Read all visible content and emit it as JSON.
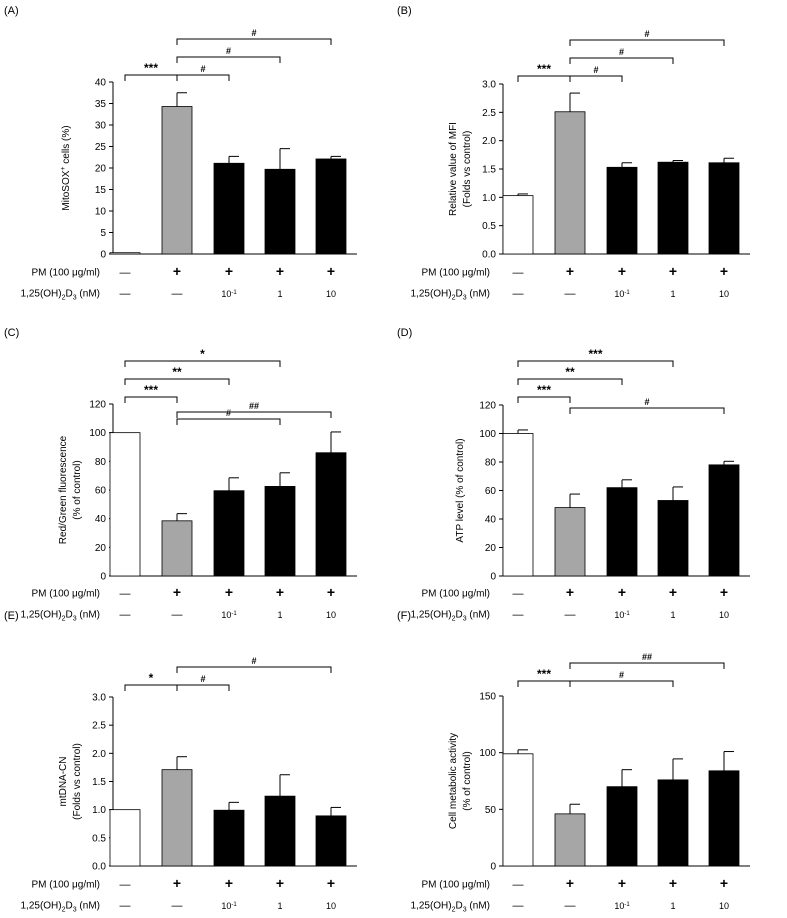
{
  "chart_data": [
    {
      "panel_label": "(A)",
      "type": "bar",
      "ylabel_parts": {
        "pre": "MitoSOX",
        "sup": "+",
        "post": " cells (%)"
      },
      "ylim": [
        0,
        40
      ],
      "yticks": [
        0,
        5,
        10,
        15,
        20,
        25,
        30,
        35,
        40
      ],
      "tick_decimals": 0,
      "bars": [
        {
          "value": 0.3,
          "error": 0,
          "fill": "#ffffff"
        },
        {
          "value": 34.3,
          "error": 3.2,
          "fill": "#a6a6a6"
        },
        {
          "value": 21.1,
          "error": 1.6,
          "fill": "#000000"
        },
        {
          "value": 19.7,
          "error": 4.8,
          "fill": "#000000"
        },
        {
          "value": 22.1,
          "error": 0.6,
          "fill": "#000000"
        }
      ],
      "brackets": [
        {
          "from": 0,
          "to": 1,
          "label": "***"
        },
        {
          "from": 1,
          "to": 2,
          "label": "#"
        },
        {
          "from": 1,
          "to": 3,
          "label": "#"
        },
        {
          "from": 1,
          "to": 4,
          "label": "#"
        }
      ]
    },
    {
      "panel_label": "(B)",
      "type": "bar",
      "ylabel_lines": [
        "Relative value of MFI",
        "(Folds vs control)"
      ],
      "ylim": [
        0,
        3
      ],
      "yticks": [
        0,
        0.5,
        1,
        1.5,
        2,
        2.5,
        3
      ],
      "tick_decimals": 1,
      "bars": [
        {
          "value": 1.03,
          "error": 0.03,
          "fill": "#ffffff"
        },
        {
          "value": 2.51,
          "error": 0.33,
          "fill": "#a6a6a6"
        },
        {
          "value": 1.53,
          "error": 0.08,
          "fill": "#000000"
        },
        {
          "value": 1.62,
          "error": 0.03,
          "fill": "#000000"
        },
        {
          "value": 1.61,
          "error": 0.08,
          "fill": "#000000"
        }
      ],
      "brackets": [
        {
          "from": 0,
          "to": 1,
          "label": "***"
        },
        {
          "from": 1,
          "to": 2,
          "label": "#"
        },
        {
          "from": 1,
          "to": 3,
          "label": "#"
        },
        {
          "from": 1,
          "to": 4,
          "label": "#"
        }
      ]
    },
    {
      "panel_label": "(C)",
      "type": "bar",
      "ylabel_lines": [
        "Red/Green fluorescence",
        "(% of control)"
      ],
      "ylim": [
        0,
        120
      ],
      "yticks": [
        0,
        20,
        40,
        60,
        80,
        100,
        120
      ],
      "tick_decimals": 0,
      "bars": [
        {
          "value": 100,
          "error": 0,
          "fill": "#ffffff"
        },
        {
          "value": 38.5,
          "error": 5,
          "fill": "#a6a6a6"
        },
        {
          "value": 59.5,
          "error": 9,
          "fill": "#000000"
        },
        {
          "value": 62.5,
          "error": 9.5,
          "fill": "#000000"
        },
        {
          "value": 86,
          "error": 14.5,
          "fill": "#000000"
        }
      ],
      "brackets": [
        {
          "from": 0,
          "to": 1,
          "label": "***"
        },
        {
          "from": 1,
          "to": 3,
          "label": "#"
        },
        {
          "from": 1,
          "to": 4,
          "label": "##"
        },
        {
          "from": 0,
          "to": 2,
          "label": "**"
        },
        {
          "from": 0,
          "to": 3,
          "label": "*"
        }
      ]
    },
    {
      "panel_label": "(D)",
      "type": "bar",
      "ylabel_lines": [
        "ATP level (% of control)"
      ],
      "ylim": [
        0,
        120
      ],
      "yticks": [
        0,
        20,
        40,
        60,
        80,
        100,
        120
      ],
      "tick_decimals": 0,
      "bars": [
        {
          "value": 100,
          "error": 2.5,
          "fill": "#ffffff"
        },
        {
          "value": 48,
          "error": 9.5,
          "fill": "#a6a6a6"
        },
        {
          "value": 62,
          "error": 5.5,
          "fill": "#000000"
        },
        {
          "value": 53,
          "error": 9.5,
          "fill": "#000000"
        },
        {
          "value": 78,
          "error": 2.5,
          "fill": "#000000"
        }
      ],
      "brackets": [
        {
          "from": 0,
          "to": 1,
          "label": "***"
        },
        {
          "from": 1,
          "to": 4,
          "label": "#"
        },
        {
          "from": 0,
          "to": 2,
          "label": "**"
        },
        {
          "from": 0,
          "to": 3,
          "label": "***"
        }
      ]
    },
    {
      "panel_label": "(E)",
      "type": "bar",
      "ylabel_lines": [
        "mtDNA-CN",
        "(Folds vs control)"
      ],
      "ylim": [
        0,
        3
      ],
      "yticks": [
        0,
        0.5,
        1,
        1.5,
        2,
        2.5,
        3
      ],
      "tick_decimals": 1,
      "bars": [
        {
          "value": 1.0,
          "error": 0,
          "fill": "#ffffff"
        },
        {
          "value": 1.71,
          "error": 0.23,
          "fill": "#a6a6a6"
        },
        {
          "value": 0.99,
          "error": 0.14,
          "fill": "#000000"
        },
        {
          "value": 1.24,
          "error": 0.38,
          "fill": "#000000"
        },
        {
          "value": 0.89,
          "error": 0.15,
          "fill": "#000000"
        }
      ],
      "brackets": [
        {
          "from": 0,
          "to": 1,
          "label": "*"
        },
        {
          "from": 1,
          "to": 2,
          "label": "#"
        },
        {
          "from": 1,
          "to": 4,
          "label": "#"
        }
      ]
    },
    {
      "panel_label": "(F)",
      "type": "bar",
      "ylabel_lines": [
        "Cell metabolic activity",
        "(% of control)"
      ],
      "ylim": [
        0,
        150
      ],
      "yticks": [
        0,
        50,
        100,
        150
      ],
      "tick_decimals": 0,
      "bars": [
        {
          "value": 99,
          "error": 3.5,
          "fill": "#ffffff"
        },
        {
          "value": 46,
          "error": 8.5,
          "fill": "#a6a6a6"
        },
        {
          "value": 70,
          "error": 15,
          "fill": "#000000"
        },
        {
          "value": 76,
          "error": 18.5,
          "fill": "#000000"
        },
        {
          "value": 84,
          "error": 17,
          "fill": "#000000"
        }
      ],
      "brackets": [
        {
          "from": 0,
          "to": 1,
          "label": "***"
        },
        {
          "from": 1,
          "to": 3,
          "label": "#"
        },
        {
          "from": 1,
          "to": 4,
          "label": "##"
        }
      ]
    }
  ],
  "treatment_rows": {
    "pm": {
      "label": "PM (100 μg/ml)",
      "marks": [
        "—",
        "+",
        "+",
        "+",
        "+"
      ]
    },
    "vitd": {
      "label_parts": {
        "a": "1,25(OH)",
        "s1": "2",
        "b": "D",
        "s2": "3",
        "c": " (nM)"
      },
      "marks": [
        "—",
        "—",
        "10",
        "1",
        "10"
      ],
      "mark_sup": [
        "",
        "",
        "-1",
        "",
        ""
      ]
    }
  }
}
